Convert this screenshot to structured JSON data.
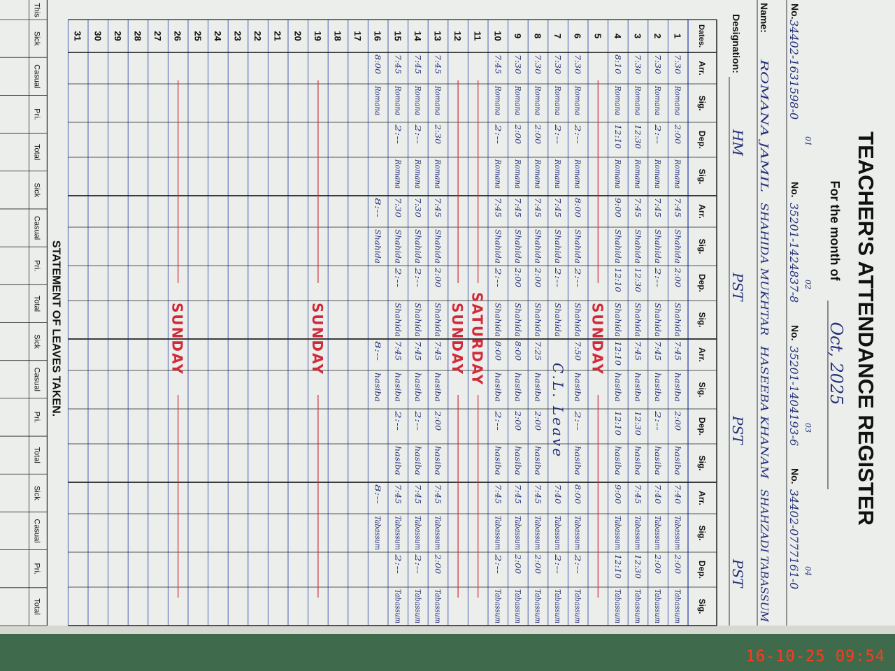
{
  "header": {
    "title": "TEACHER'S ATTENDANCE REGISTER",
    "month_label": "For the month of",
    "month": "Oct, 2025"
  },
  "labels": {
    "no": "No.",
    "name": "Name:",
    "designation": "Designation:",
    "dates": "Dates."
  },
  "teachers": [
    {
      "index": "01",
      "number": "34402-1631598-0",
      "name": "ROMANA JAMIL",
      "designation": "HM"
    },
    {
      "index": "02",
      "number": "35201-1424837-8",
      "name": "SHAHIDA MUKHTAR",
      "designation": "PST"
    },
    {
      "index": "03",
      "number": "35201-1404193-6",
      "name": "HASEEBA KHANAM",
      "designation": "PST"
    },
    {
      "index": "04",
      "number": "34402-0777161-0",
      "name": "SHAHZADI TABASSUM",
      "designation": "PST"
    }
  ],
  "columns": [
    "Arr.",
    "Sig.",
    "Dep.",
    "Sig."
  ],
  "rows": [
    {
      "date": "1",
      "entries": [
        [
          "7:30",
          "Romana",
          "2:00",
          "Romana"
        ],
        [
          "7:45",
          "Shahida",
          "2:00",
          "Shahida"
        ],
        [
          "7:45",
          "hasiba",
          "2:00",
          "hasiba"
        ],
        [
          "7:40",
          "Tabassum",
          "2:00",
          "Tabassum"
        ]
      ]
    },
    {
      "date": "2",
      "entries": [
        [
          "7:30",
          "Romana",
          "2:--",
          "Romana"
        ],
        [
          "7:45",
          "Shahida",
          "2:--",
          "Shahida"
        ],
        [
          "7:45",
          "hasiba",
          "2:--",
          "hasiba"
        ],
        [
          "7:40",
          "Tabassum",
          "2:00",
          "Tabassum"
        ]
      ]
    },
    {
      "date": "3",
      "entries": [
        [
          "7:30",
          "Romana",
          "12:30",
          "Romana"
        ],
        [
          "7:45",
          "Shahida",
          "12:30",
          "Shahida"
        ],
        [
          "7:45",
          "hasiba",
          "12:30",
          "hasiba"
        ],
        [
          "7:45",
          "Tabassum",
          "12:30",
          "Tabassum"
        ]
      ]
    },
    {
      "date": "4",
      "entries": [
        [
          "8:10",
          "Romana",
          "12:10",
          "Romana"
        ],
        [
          "9:00",
          "Shahida",
          "12:10",
          "Shahida"
        ],
        [
          "12:10",
          "hasiba",
          "12:10",
          "hasiba"
        ],
        [
          "9:00",
          "Tabassum",
          "12:10",
          "Tabassum"
        ]
      ]
    },
    {
      "date": "5",
      "note": "SUNDAY"
    },
    {
      "date": "6",
      "entries": [
        [
          "7:30",
          "Romana",
          "2:--",
          "Romana"
        ],
        [
          "8:00",
          "Shahida",
          "2:--",
          "Shahida"
        ],
        [
          "7:50",
          "hasiba",
          "2:--",
          "hasiba"
        ],
        [
          "8:00",
          "Tabassum",
          "2:--",
          "Tabassum"
        ]
      ]
    },
    {
      "date": "7",
      "entries": [
        [
          "7:30",
          "Romana",
          "2:--",
          "Romana"
        ],
        [
          "7:45",
          "Shahida",
          "2:--",
          "Shahida"
        ],
        "C.L. Leave",
        [
          "7:40",
          "Tabassum",
          "2:--",
          "Tabassum"
        ]
      ]
    },
    {
      "date": "8",
      "entries": [
        [
          "7:30",
          "Romana",
          "2:00",
          "Romana"
        ],
        [
          "7:45",
          "Shahida",
          "2:00",
          "Shahida"
        ],
        [
          "7:25",
          "hasiba",
          "2:00",
          "hasiba"
        ],
        [
          "7:45",
          "Tabassum",
          "2:00",
          "Tabassum"
        ]
      ]
    },
    {
      "date": "9",
      "entries": [
        [
          "7:30",
          "Romana",
          "2:00",
          "Romana"
        ],
        [
          "7:45",
          "Shahida",
          "2:00",
          "Shahida"
        ],
        [
          "8:00",
          "hasiba",
          "2:00",
          "hasiba"
        ],
        [
          "7:45",
          "Tabassum",
          "2:00",
          "Tabassum"
        ]
      ]
    },
    {
      "date": "10",
      "entries": [
        [
          "7:45",
          "Romana",
          "2:--",
          "Romana"
        ],
        [
          "7:45",
          "Shahida",
          "2:--",
          "Shahida"
        ],
        [
          "8:00",
          "hasiba",
          "2:--",
          "hasiba"
        ],
        [
          "7:45",
          "Tabassum",
          "2:--",
          "Tabassum"
        ]
      ]
    },
    {
      "date": "11",
      "note": "SATURDAY"
    },
    {
      "date": "12",
      "note": "SUNDAY"
    },
    {
      "date": "13",
      "entries": [
        [
          "7:45",
          "Romana",
          "2:30",
          "Romana"
        ],
        [
          "7:45",
          "Shahida",
          "2:00",
          "Shahida"
        ],
        [
          "7:45",
          "hasiba",
          "2:00",
          "hasiba"
        ],
        [
          "7:45",
          "Tabassum",
          "2:00",
          "Tabassum"
        ]
      ]
    },
    {
      "date": "14",
      "entries": [
        [
          "7:45",
          "Romana",
          "2:--",
          "Romana"
        ],
        [
          "7:30",
          "Shahida",
          "2:--",
          "Shahida"
        ],
        [
          "7:45",
          "hasiba",
          "2:--",
          "hasiba"
        ],
        [
          "7:45",
          "Tabassum",
          "2:--",
          "Tabassum"
        ]
      ]
    },
    {
      "date": "15",
      "entries": [
        [
          "7:45",
          "Romana",
          "2:--",
          "Romana"
        ],
        [
          "7:30",
          "Shahida",
          "2:--",
          "Shahida"
        ],
        [
          "7:45",
          "hasiba",
          "2:--",
          "hasiba"
        ],
        [
          "7:45",
          "Tabassum",
          "2:--",
          "Tabassum"
        ]
      ]
    },
    {
      "date": "16",
      "entries": [
        [
          "8:00",
          "Romana",
          null,
          null
        ],
        [
          "8:--",
          "Shahida",
          null,
          null
        ],
        [
          "8:--",
          "hasiba",
          null,
          null
        ],
        [
          "8:--",
          "Tabassum",
          null,
          null
        ]
      ]
    },
    {
      "date": "17"
    },
    {
      "date": "18"
    },
    {
      "date": "19",
      "note": "SUNDAY"
    },
    {
      "date": "20"
    },
    {
      "date": "21"
    },
    {
      "date": "22"
    },
    {
      "date": "23"
    },
    {
      "date": "24"
    },
    {
      "date": "25"
    },
    {
      "date": "26",
      "note": "SUNDAY"
    },
    {
      "date": "27"
    },
    {
      "date": "28"
    },
    {
      "date": "29"
    },
    {
      "date": "30"
    },
    {
      "date": "31"
    }
  ],
  "leaves": {
    "title": "STATEMENT OF LEAVES TAKEN.",
    "first_column": "This",
    "columns": [
      "Sick",
      "Casual",
      "Pri.",
      "Total"
    ]
  },
  "timestamp": "16-10-25  09:54"
}
